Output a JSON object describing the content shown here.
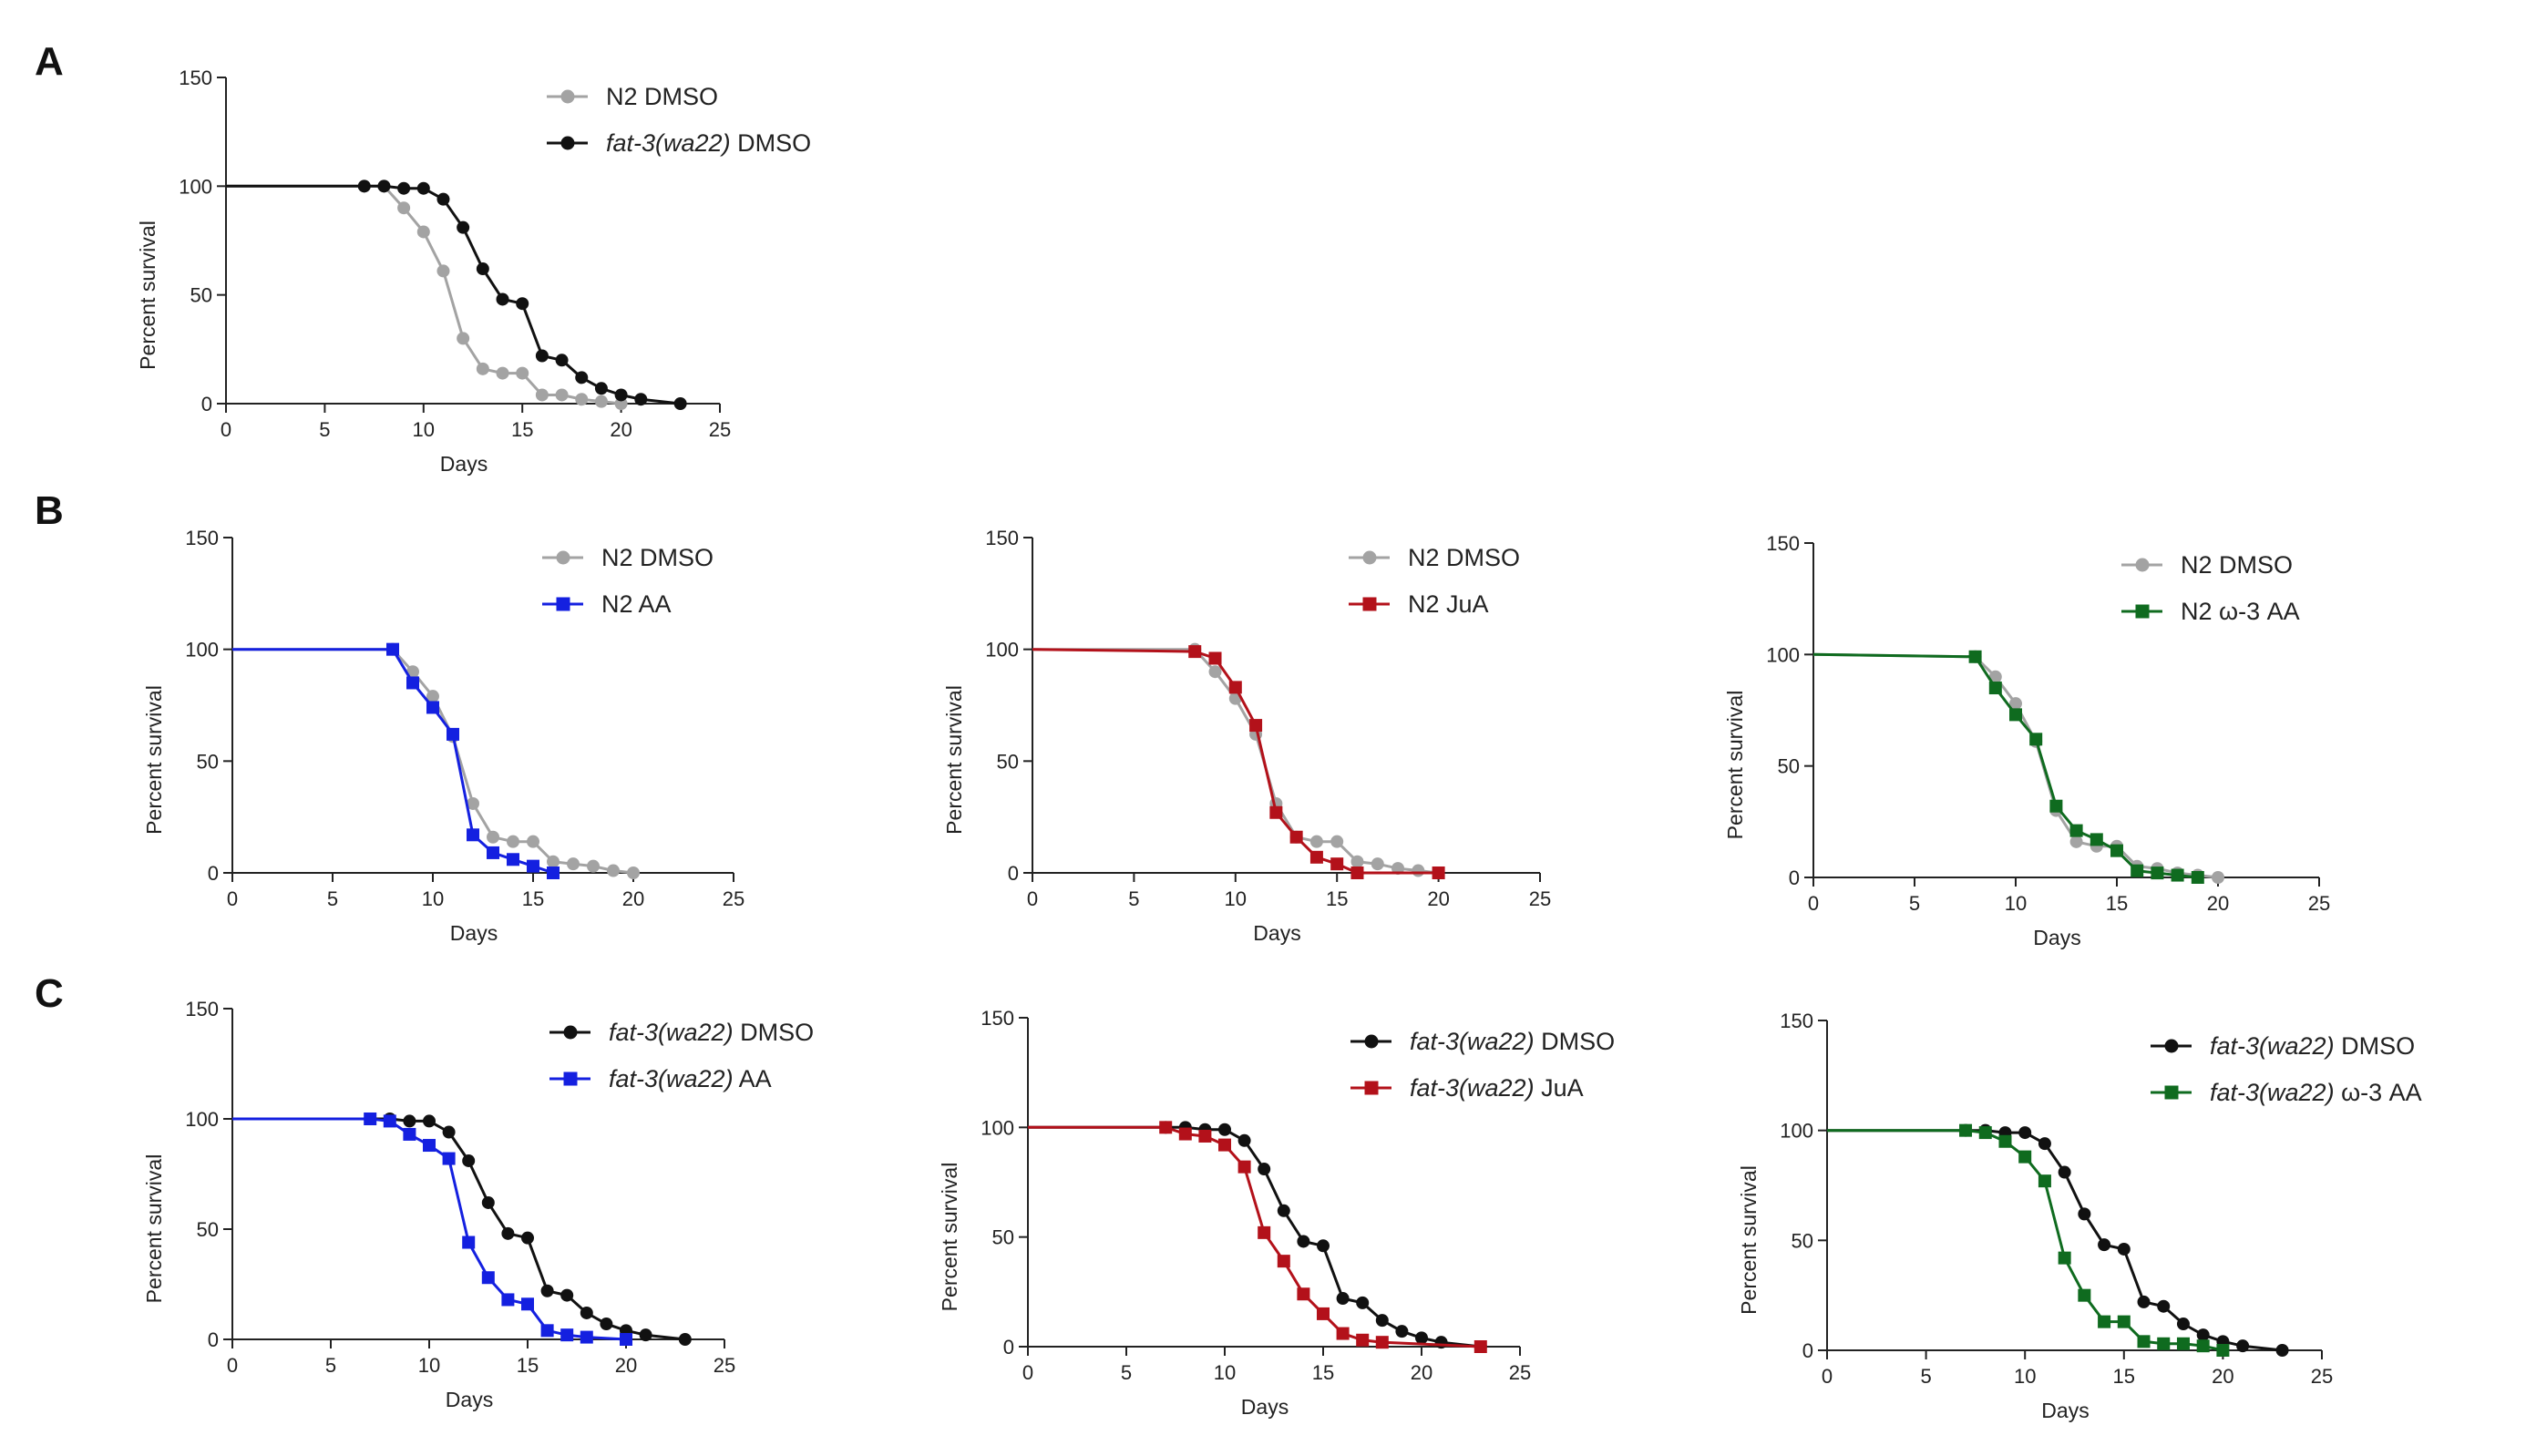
{
  "figure": {
    "panel_letters": [
      "A",
      "B",
      "C"
    ]
  },
  "styles": {
    "colors": {
      "gray": "#a3a3a3",
      "black": "#111111",
      "blue": "#1420e0",
      "red": "#b3111a",
      "green": "#0f6b1f"
    }
  },
  "chart_data": [
    {
      "id": "A",
      "type": "line",
      "xlabel": "Days",
      "ylabel": "Percent survival",
      "xlim": [
        0,
        25
      ],
      "ylim": [
        0,
        150
      ],
      "xticks": [
        0,
        5,
        10,
        15,
        20,
        25
      ],
      "yticks": [
        0,
        50,
        100,
        150
      ],
      "legend_position": "top-right",
      "series": [
        {
          "name": "N2 DMSO",
          "strain": "N2",
          "treatment": "DMSO",
          "italic_strain": false,
          "color": "gray",
          "marker": "circle",
          "x": [
            0,
            7,
            8,
            9,
            10,
            11,
            12,
            13,
            14,
            15,
            16,
            17,
            18,
            19,
            20
          ],
          "y": [
            100,
            100,
            100,
            90,
            79,
            61,
            30,
            16,
            14,
            14,
            4,
            4,
            2,
            1,
            0
          ]
        },
        {
          "name": "fat-3(wa22) DMSO",
          "strain": "fat-3(wa22)",
          "treatment": "DMSO",
          "italic_strain": true,
          "color": "black",
          "marker": "circle",
          "x": [
            0,
            7,
            8,
            9,
            10,
            11,
            12,
            13,
            14,
            15,
            16,
            17,
            18,
            19,
            20,
            21,
            23
          ],
          "y": [
            100,
            100,
            100,
            99,
            99,
            94,
            81,
            62,
            48,
            46,
            22,
            20,
            12,
            7,
            4,
            2,
            0
          ]
        }
      ]
    },
    {
      "id": "B1",
      "type": "line",
      "xlabel": "Days",
      "ylabel": "Percent survival",
      "xlim": [
        0,
        25
      ],
      "ylim": [
        0,
        150
      ],
      "xticks": [
        0,
        5,
        10,
        15,
        20,
        25
      ],
      "yticks": [
        0,
        50,
        100,
        150
      ],
      "legend_position": "top-right",
      "series": [
        {
          "name": "N2 DMSO",
          "strain": "N2",
          "treatment": "DMSO",
          "italic_strain": false,
          "color": "gray",
          "marker": "circle",
          "x": [
            0,
            8,
            9,
            10,
            11,
            12,
            13,
            14,
            15,
            16,
            17,
            18,
            19,
            20
          ],
          "y": [
            100,
            100,
            90,
            79,
            61,
            31,
            16,
            14,
            14,
            5,
            4,
            3,
            1,
            0
          ]
        },
        {
          "name": "N2 AA",
          "strain": "N2",
          "treatment": "AA",
          "italic_strain": false,
          "color": "blue",
          "marker": "square",
          "x": [
            0,
            8,
            9,
            10,
            11,
            12,
            13,
            14,
            15,
            16
          ],
          "y": [
            100,
            100,
            85,
            74,
            62,
            17,
            9,
            6,
            3,
            0
          ]
        }
      ]
    },
    {
      "id": "B2",
      "type": "line",
      "xlabel": "Days",
      "ylabel": "Percent survival",
      "xlim": [
        0,
        25
      ],
      "ylim": [
        0,
        150
      ],
      "xticks": [
        0,
        5,
        10,
        15,
        20,
        25
      ],
      "yticks": [
        0,
        50,
        100,
        150
      ],
      "legend_position": "top-right",
      "series": [
        {
          "name": "N2 DMSO",
          "strain": "N2",
          "treatment": "DMSO",
          "italic_strain": false,
          "color": "gray",
          "marker": "circle",
          "x": [
            0,
            8,
            9,
            10,
            11,
            12,
            13,
            14,
            15,
            16,
            17,
            18,
            19,
            20
          ],
          "y": [
            100,
            100,
            90,
            78,
            62,
            31,
            16,
            14,
            14,
            5,
            4,
            2,
            1,
            0
          ]
        },
        {
          "name": "N2 JuA",
          "strain": "N2",
          "treatment": "JuA",
          "italic_strain": false,
          "color": "red",
          "marker": "square",
          "x": [
            0,
            8,
            9,
            10,
            11,
            12,
            13,
            14,
            15,
            16,
            20
          ],
          "y": [
            100,
            99,
            96,
            83,
            66,
            27,
            16,
            7,
            4,
            0,
            0
          ]
        }
      ]
    },
    {
      "id": "B3",
      "type": "line",
      "xlabel": "Days",
      "ylabel": "Percent survival",
      "xlim": [
        0,
        25
      ],
      "ylim": [
        0,
        150
      ],
      "xticks": [
        0,
        5,
        10,
        15,
        20,
        25
      ],
      "yticks": [
        0,
        50,
        100,
        150
      ],
      "legend_position": "top-right",
      "series": [
        {
          "name": "N2 DMSO",
          "strain": "N2",
          "treatment": "DMSO",
          "italic_strain": false,
          "color": "gray",
          "marker": "circle",
          "x": [
            0,
            8,
            9,
            10,
            11,
            12,
            13,
            14,
            15,
            16,
            17,
            18,
            19,
            20
          ],
          "y": [
            100,
            99,
            90,
            78,
            61,
            30,
            16,
            14,
            14,
            5,
            4,
            2,
            1,
            0
          ]
        },
        {
          "name": "N2 ω-3 AA",
          "strain": "N2",
          "treatment": "ω-3 AA",
          "italic_strain": false,
          "color": "green",
          "marker": "square",
          "x": [
            0,
            8,
            9,
            10,
            11,
            12,
            13,
            14,
            15,
            16,
            17,
            18,
            19
          ],
          "y": [
            100,
            99,
            85,
            73,
            62,
            32,
            21,
            17,
            12,
            3,
            2,
            1,
            0
          ]
        }
      ]
    },
    {
      "id": "C1",
      "type": "line",
      "xlabel": "Days",
      "ylabel": "Percent survival",
      "xlim": [
        0,
        25
      ],
      "ylim": [
        0,
        150
      ],
      "xticks": [
        0,
        5,
        10,
        15,
        20,
        25
      ],
      "yticks": [
        0,
        50,
        100,
        150
      ],
      "legend_position": "top-right",
      "series": [
        {
          "name": "fat-3(wa22) DMSO",
          "strain": "fat-3(wa22)",
          "treatment": "DMSO",
          "italic_strain": true,
          "color": "black",
          "marker": "circle",
          "x": [
            0,
            7,
            8,
            9,
            10,
            11,
            12,
            13,
            14,
            15,
            16,
            17,
            18,
            19,
            20,
            21,
            23
          ],
          "y": [
            100,
            100,
            100,
            99,
            99,
            94,
            81,
            62,
            48,
            46,
            22,
            20,
            12,
            7,
            4,
            2,
            0
          ]
        },
        {
          "name": "fat-3(wa22) AA",
          "strain": "fat-3(wa22)",
          "treatment": "AA",
          "italic_strain": true,
          "color": "blue",
          "marker": "square",
          "x": [
            0,
            7,
            8,
            9,
            10,
            11,
            12,
            13,
            14,
            15,
            16,
            17,
            18,
            20
          ],
          "y": [
            100,
            100,
            99,
            93,
            88,
            82,
            44,
            28,
            18,
            16,
            4,
            2,
            1,
            0
          ]
        }
      ]
    },
    {
      "id": "C2",
      "type": "line",
      "xlabel": "Days",
      "ylabel": "Percent survival",
      "xlim": [
        0,
        25
      ],
      "ylim": [
        0,
        150
      ],
      "xticks": [
        0,
        5,
        10,
        15,
        20,
        25
      ],
      "yticks": [
        0,
        50,
        100,
        150
      ],
      "legend_position": "top-right",
      "series": [
        {
          "name": "fat-3(wa22) DMSO",
          "strain": "fat-3(wa22)",
          "treatment": "DMSO",
          "italic_strain": true,
          "color": "black",
          "marker": "circle",
          "x": [
            0,
            7,
            8,
            9,
            10,
            11,
            12,
            13,
            14,
            15,
            16,
            17,
            18,
            19,
            20,
            21,
            23
          ],
          "y": [
            100,
            100,
            100,
            99,
            99,
            94,
            81,
            62,
            48,
            46,
            22,
            20,
            12,
            7,
            4,
            2,
            0
          ]
        },
        {
          "name": "fat-3(wa22) JuA",
          "strain": "fat-3(wa22)",
          "treatment": "JuA",
          "italic_strain": true,
          "color": "red",
          "marker": "square",
          "x": [
            0,
            7,
            8,
            9,
            10,
            11,
            12,
            13,
            14,
            15,
            16,
            17,
            18,
            23
          ],
          "y": [
            100,
            100,
            97,
            96,
            92,
            82,
            52,
            39,
            24,
            15,
            6,
            3,
            2,
            0
          ]
        }
      ]
    },
    {
      "id": "C3",
      "type": "line",
      "xlabel": "Days",
      "ylabel": "Percent survival",
      "xlim": [
        0,
        25
      ],
      "ylim": [
        0,
        150
      ],
      "xticks": [
        0,
        5,
        10,
        15,
        20,
        25
      ],
      "yticks": [
        0,
        50,
        100,
        150
      ],
      "legend_position": "top-right",
      "series": [
        {
          "name": "fat-3(wa22) DMSO",
          "strain": "fat-3(wa22)",
          "treatment": "DMSO",
          "italic_strain": true,
          "color": "black",
          "marker": "circle",
          "x": [
            0,
            7,
            8,
            9,
            10,
            11,
            12,
            13,
            14,
            15,
            16,
            17,
            18,
            19,
            20,
            21,
            23
          ],
          "y": [
            100,
            100,
            100,
            99,
            99,
            94,
            81,
            62,
            48,
            46,
            22,
            20,
            12,
            7,
            4,
            2,
            0
          ]
        },
        {
          "name": "fat-3(wa22) ω-3 AA",
          "strain": "fat-3(wa22)",
          "treatment": "ω-3 AA",
          "italic_strain": true,
          "color": "green",
          "marker": "square",
          "x": [
            0,
            7,
            8,
            9,
            10,
            11,
            12,
            13,
            14,
            15,
            16,
            17,
            18,
            19,
            20
          ],
          "y": [
            100,
            100,
            99,
            95,
            88,
            77,
            42,
            25,
            13,
            13,
            4,
            3,
            3,
            2,
            0
          ]
        }
      ]
    }
  ]
}
